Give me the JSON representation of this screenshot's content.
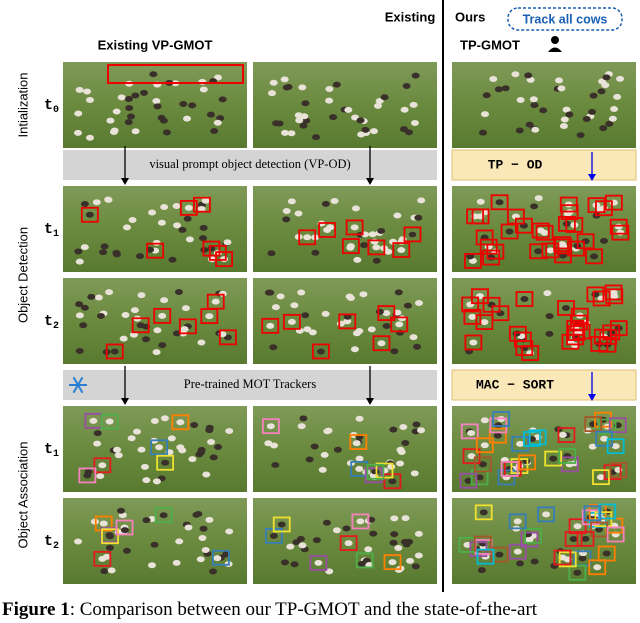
{
  "header": {
    "existing": "Existing",
    "ours": "Ours",
    "prompt": "Track all cows",
    "left_title": "Existing VP-GMOT",
    "right_title": "TP-GMOT"
  },
  "rows": [
    {
      "label": "Intialization"
    },
    {
      "label": "Object Detection"
    },
    {
      "label": "Object Association"
    }
  ],
  "time_labels": [
    {
      "letter": "t",
      "sub": "0"
    },
    {
      "letter": "t",
      "sub": "1"
    },
    {
      "letter": "t",
      "sub": "2"
    },
    {
      "letter": "t",
      "sub": "1"
    },
    {
      "letter": "t",
      "sub": "2"
    }
  ],
  "bands": [
    {
      "left": "visual prompt object detection (VP-OD)",
      "right": "TP − OD"
    },
    {
      "left": "Pre-trained MOT Trackers",
      "right": "MAC − SORT"
    }
  ],
  "caption": {
    "label": "Figure 1",
    "text": ": Comparison between our TP-GMOT and the state-of-the-art"
  }
}
